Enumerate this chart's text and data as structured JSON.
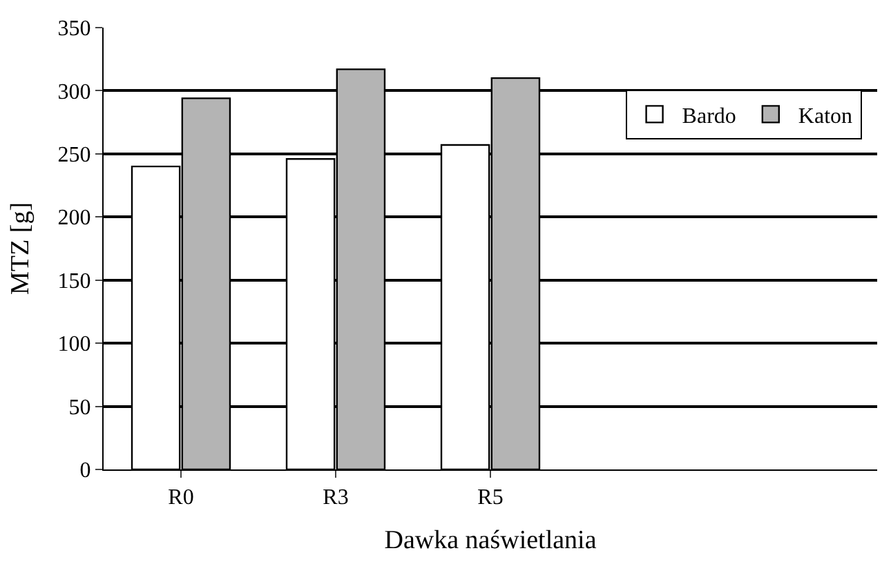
{
  "chart_data": {
    "type": "bar",
    "xlabel": "Dawka naświetlania",
    "ylabel": "MTZ [g]",
    "categories": [
      "R0",
      "R3",
      "R5",
      null,
      null
    ],
    "series": [
      {
        "name": "Bardo",
        "color": "#ffffff",
        "values": [
          240,
          246,
          257,
          null,
          null
        ]
      },
      {
        "name": "Katon",
        "color": "#b4b4b4",
        "values": [
          294,
          317,
          310,
          null,
          null
        ]
      }
    ],
    "ylim": [
      0,
      350
    ],
    "yticks": [
      0,
      50,
      100,
      150,
      200,
      250,
      300,
      350
    ],
    "grid": "y",
    "legend": "top right"
  }
}
